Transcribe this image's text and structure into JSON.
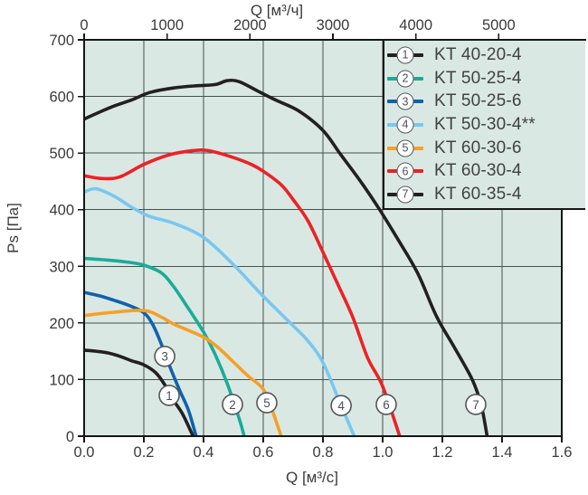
{
  "chart_data": {
    "type": "line",
    "title": "",
    "xlabel_top": "Q [м³/ч]",
    "xlabel_bottom": "Q [м³/с]",
    "ylabel": "Ps [Па]",
    "xlim": [
      0,
      1.6
    ],
    "ylim": [
      0,
      700
    ],
    "grid": true,
    "legend_position": "top-right-inside",
    "x_ticks_bottom": {
      "values": [
        0.0,
        0.2,
        0.4,
        0.6,
        0.8,
        1.0,
        1.2,
        1.4,
        1.6
      ],
      "labels": [
        "0.0",
        "0.2",
        "0.4",
        "0.6",
        "0.8",
        "1.0",
        "1.2",
        "1.4",
        "1.6"
      ]
    },
    "x_ticks_top": {
      "unit": "м³/ч",
      "m3h_per_m3s": 3600,
      "values": [
        0,
        1000,
        2000,
        3000,
        4000,
        5000
      ],
      "labels": [
        "0",
        "1000",
        "2000",
        "3000",
        "4000",
        "5000"
      ]
    },
    "y_ticks": {
      "values": [
        0,
        100,
        200,
        300,
        400,
        500,
        600,
        700
      ],
      "labels": [
        "0",
        "100",
        "200",
        "300",
        "400",
        "500",
        "600",
        "700"
      ]
    },
    "colors": {
      "plot_bg": "#d9e8e3",
      "grid": "#47504e",
      "axis": "#161616",
      "tick_text": "#3a3a3a",
      "legend_text": "#414141",
      "marker_ring": "#55565a",
      "marker_number": "#47505c"
    },
    "series": [
      {
        "id": 1,
        "name": "KT 40-20-4",
        "color": "#231f20",
        "marker": {
          "q": 0.285,
          "ps": 72
        },
        "points": [
          [
            0,
            152
          ],
          [
            0.04,
            150
          ],
          [
            0.08,
            147
          ],
          [
            0.12,
            141
          ],
          [
            0.16,
            133
          ],
          [
            0.2,
            126
          ],
          [
            0.24,
            112
          ],
          [
            0.27,
            91
          ],
          [
            0.3,
            63
          ],
          [
            0.33,
            39
          ],
          [
            0.365,
            0
          ]
        ]
      },
      {
        "id": 2,
        "name": "KT 50-25-4",
        "color": "#1bab99",
        "marker": {
          "q": 0.497,
          "ps": 56
        },
        "points": [
          [
            0,
            314
          ],
          [
            0.08,
            311
          ],
          [
            0.15,
            307
          ],
          [
            0.2,
            302
          ],
          [
            0.26,
            288
          ],
          [
            0.3,
            264
          ],
          [
            0.34,
            233
          ],
          [
            0.4,
            184
          ],
          [
            0.44,
            143
          ],
          [
            0.48,
            92
          ],
          [
            0.52,
            30
          ],
          [
            0.536,
            0
          ]
        ]
      },
      {
        "id": 3,
        "name": "KT 50-25-6",
        "color": "#0f62ae",
        "marker": {
          "q": 0.27,
          "ps": 141
        },
        "points": [
          [
            0,
            254
          ],
          [
            0.05,
            248
          ],
          [
            0.1,
            240
          ],
          [
            0.15,
            231
          ],
          [
            0.2,
            218
          ],
          [
            0.23,
            197
          ],
          [
            0.26,
            161
          ],
          [
            0.29,
            119
          ],
          [
            0.32,
            81
          ],
          [
            0.35,
            45
          ],
          [
            0.375,
            0
          ]
        ]
      },
      {
        "id": 4,
        "name": "KT 50-30-4**",
        "color": "#79c7f1",
        "marker": {
          "q": 0.861,
          "ps": 54
        },
        "points": [
          [
            0,
            431
          ],
          [
            0.04,
            437
          ],
          [
            0.1,
            424
          ],
          [
            0.16,
            404
          ],
          [
            0.22,
            388
          ],
          [
            0.3,
            376
          ],
          [
            0.4,
            351
          ],
          [
            0.5,
            303
          ],
          [
            0.6,
            247
          ],
          [
            0.7,
            195
          ],
          [
            0.75,
            168
          ],
          [
            0.8,
            130
          ],
          [
            0.86,
            55
          ],
          [
            0.905,
            0
          ]
        ]
      },
      {
        "id": 5,
        "name": "KT 60-30-6",
        "color": "#f5a028",
        "marker": {
          "q": 0.612,
          "ps": 59
        },
        "points": [
          [
            0,
            213
          ],
          [
            0.1,
            219
          ],
          [
            0.2,
            222
          ],
          [
            0.26,
            210
          ],
          [
            0.3,
            198
          ],
          [
            0.4,
            175
          ],
          [
            0.45,
            156
          ],
          [
            0.5,
            131
          ],
          [
            0.55,
            106
          ],
          [
            0.6,
            83
          ],
          [
            0.63,
            46
          ],
          [
            0.66,
            0
          ]
        ]
      },
      {
        "id": 6,
        "name": "KT 60-30-4",
        "color": "#eb2227",
        "marker": {
          "q": 1.012,
          "ps": 56
        },
        "points": [
          [
            0,
            460
          ],
          [
            0.06,
            455
          ],
          [
            0.12,
            458
          ],
          [
            0.2,
            480
          ],
          [
            0.28,
            496
          ],
          [
            0.36,
            504
          ],
          [
            0.42,
            504
          ],
          [
            0.5,
            492
          ],
          [
            0.56,
            480
          ],
          [
            0.6,
            468
          ],
          [
            0.66,
            444
          ],
          [
            0.7,
            418
          ],
          [
            0.75,
            380
          ],
          [
            0.8,
            325
          ],
          [
            0.85,
            268
          ],
          [
            0.9,
            210
          ],
          [
            0.95,
            138
          ],
          [
            1.0,
            88
          ],
          [
            1.057,
            0
          ]
        ]
      },
      {
        "id": 7,
        "name": "KT 60-35-4",
        "color": "#231f20",
        "marker": {
          "q": 1.312,
          "ps": 56
        },
        "points": [
          [
            0,
            560
          ],
          [
            0.05,
            572
          ],
          [
            0.1,
            583
          ],
          [
            0.16,
            594
          ],
          [
            0.22,
            607
          ],
          [
            0.3,
            615
          ],
          [
            0.38,
            619
          ],
          [
            0.44,
            621
          ],
          [
            0.48,
            628
          ],
          [
            0.52,
            626
          ],
          [
            0.58,
            610
          ],
          [
            0.64,
            594
          ],
          [
            0.72,
            574
          ],
          [
            0.8,
            540
          ],
          [
            0.86,
            497
          ],
          [
            0.93,
            447
          ],
          [
            0.99,
            400
          ],
          [
            1.06,
            340
          ],
          [
            1.12,
            285
          ],
          [
            1.18,
            212
          ],
          [
            1.24,
            157
          ],
          [
            1.3,
            100
          ],
          [
            1.33,
            55
          ],
          [
            1.35,
            0
          ]
        ]
      }
    ]
  }
}
